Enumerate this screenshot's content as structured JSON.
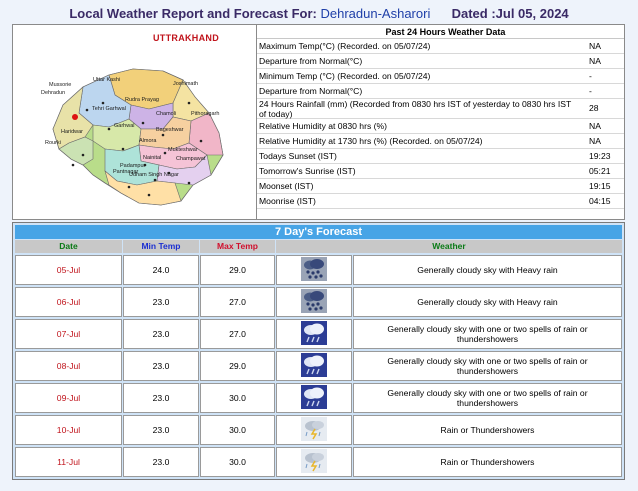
{
  "header": {
    "prefix": "Local Weather Report and Forecast For:",
    "location": "Dehradun-Asharori",
    "date": "Dated :Jul 05, 2024"
  },
  "map": {
    "title": "UTTRAKHAND",
    "towns": [
      "Uttar Kashi",
      "Mussorie",
      "Dehradun",
      "Joshimath",
      "Tehri Garhwal",
      "Rudra Prayag",
      "Chamoli",
      "Pithoragarh",
      "Garhwal",
      "Haridwar",
      "Rourki",
      "Bageshwar",
      "Almora",
      "Nainital",
      "Mukteshwar",
      "Champawat",
      "Padampur",
      "Udham Singh Nagar",
      "Pantnagar"
    ]
  },
  "past24": {
    "title": "Past 24 Hours Weather Data",
    "rows": [
      {
        "label": "Maximum Temp(°C) (Recorded. on 05/07/24)",
        "value": "NA"
      },
      {
        "label": "Departure from Normal(°C)",
        "value": "NA"
      },
      {
        "label": "Minimum Temp (°C) (Recorded. on 05/07/24)",
        "value": "-"
      },
      {
        "label": "Departure from Normal(°C)",
        "value": "-"
      },
      {
        "label": "24 Hours Rainfall (mm) (Recorded from 0830 hrs IST of yesterday to 0830 hrs IST of today)",
        "value": "28"
      },
      {
        "label": "Relative Humidity at 0830 hrs (%)",
        "value": "NA"
      },
      {
        "label": "Relative Humidity at 1730 hrs (%) (Recorded. on 05/07/24)",
        "value": "NA"
      },
      {
        "label": "Todays Sunset (IST)",
        "value": "19:23"
      },
      {
        "label": "Tomorrow's Sunrise (IST)",
        "value": "05:21"
      },
      {
        "label": "Moonset (IST)",
        "value": "19:15"
      },
      {
        "label": "Moonrise (IST)",
        "value": "04:15"
      }
    ]
  },
  "forecast": {
    "title": "7 Day's Forecast",
    "columns": {
      "date": "Date",
      "min": "Min Temp",
      "max": "Max Temp",
      "weather": "Weather"
    },
    "rows": [
      {
        "date": "05-Jul",
        "min": "24.0",
        "max": "29.0",
        "icon": "heavy-rain-icon",
        "desc": "Generally cloudy sky with Heavy rain"
      },
      {
        "date": "06-Jul",
        "min": "23.0",
        "max": "27.0",
        "icon": "heavy-rain-icon",
        "desc": "Generally cloudy sky with Heavy rain"
      },
      {
        "date": "07-Jul",
        "min": "23.0",
        "max": "27.0",
        "icon": "rain-cloud-icon",
        "desc": "Generally cloudy sky with one or two spells of rain or thundershowers"
      },
      {
        "date": "08-Jul",
        "min": "23.0",
        "max": "29.0",
        "icon": "rain-cloud-icon",
        "desc": "Generally cloudy sky with one or two spells of rain or thundershowers"
      },
      {
        "date": "09-Jul",
        "min": "23.0",
        "max": "30.0",
        "icon": "rain-cloud-icon",
        "desc": "Generally cloudy sky with one or two spells of rain or thundershowers"
      },
      {
        "date": "10-Jul",
        "min": "23.0",
        "max": "30.0",
        "icon": "thundershower-icon",
        "desc": "Rain or Thundershowers"
      },
      {
        "date": "11-Jul",
        "min": "23.0",
        "max": "30.0",
        "icon": "thundershower-icon",
        "desc": "Rain or Thundershowers"
      }
    ]
  },
  "colors": {
    "title": "#3a2a66",
    "location": "#1f3fa8",
    "forecast_header": "#47a4e6",
    "date_red": "#c0131b"
  }
}
